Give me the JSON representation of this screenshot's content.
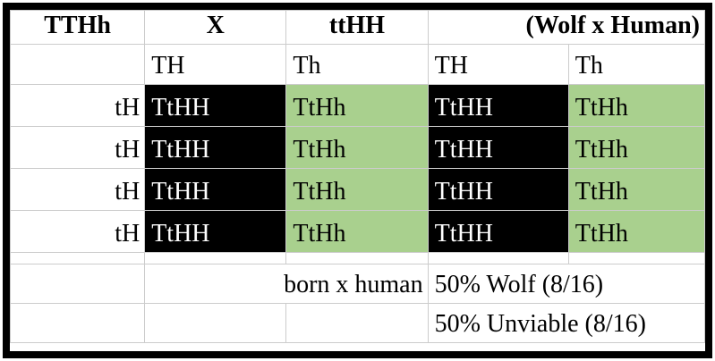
{
  "colors": {
    "dominant_fill": "#000000",
    "dominant_text": "#ffffff",
    "carrier_fill": "#a9d08e",
    "gridline": "#cccccc",
    "outer_border": "#000000"
  },
  "cross_header": {
    "parent1": "TTHh",
    "cross_symbol": "X",
    "parent2": "ttHH",
    "cross_label": "(Wolf x Human)"
  },
  "gametes": {
    "top": [
      "TH",
      "Th",
      "TH",
      "Th"
    ]
  },
  "punnett": {
    "rows": [
      {
        "side": "tH",
        "cells": [
          {
            "text": "TtHH",
            "fill": "black"
          },
          {
            "text": "TtHh",
            "fill": "green"
          },
          {
            "text": "TtHH",
            "fill": "black"
          },
          {
            "text": "TtHh",
            "fill": "green"
          }
        ]
      },
      {
        "side": "tH",
        "cells": [
          {
            "text": "TtHH",
            "fill": "black"
          },
          {
            "text": "TtHh",
            "fill": "green"
          },
          {
            "text": "TtHH",
            "fill": "black"
          },
          {
            "text": "TtHh",
            "fill": "green"
          }
        ]
      },
      {
        "side": "tH",
        "cells": [
          {
            "text": "TtHH",
            "fill": "black"
          },
          {
            "text": "TtHh",
            "fill": "green"
          },
          {
            "text": "TtHH",
            "fill": "black"
          },
          {
            "text": "TtHh",
            "fill": "green"
          }
        ]
      },
      {
        "side": "tH",
        "cells": [
          {
            "text": "TtHH",
            "fill": "black"
          },
          {
            "text": "TtHh",
            "fill": "green"
          },
          {
            "text": "TtHH",
            "fill": "black"
          },
          {
            "text": "TtHh",
            "fill": "green"
          }
        ]
      }
    ]
  },
  "results": {
    "note": "born x human",
    "line1": "50% Wolf (8/16)",
    "line2": "50% Unviable (8/16)"
  }
}
